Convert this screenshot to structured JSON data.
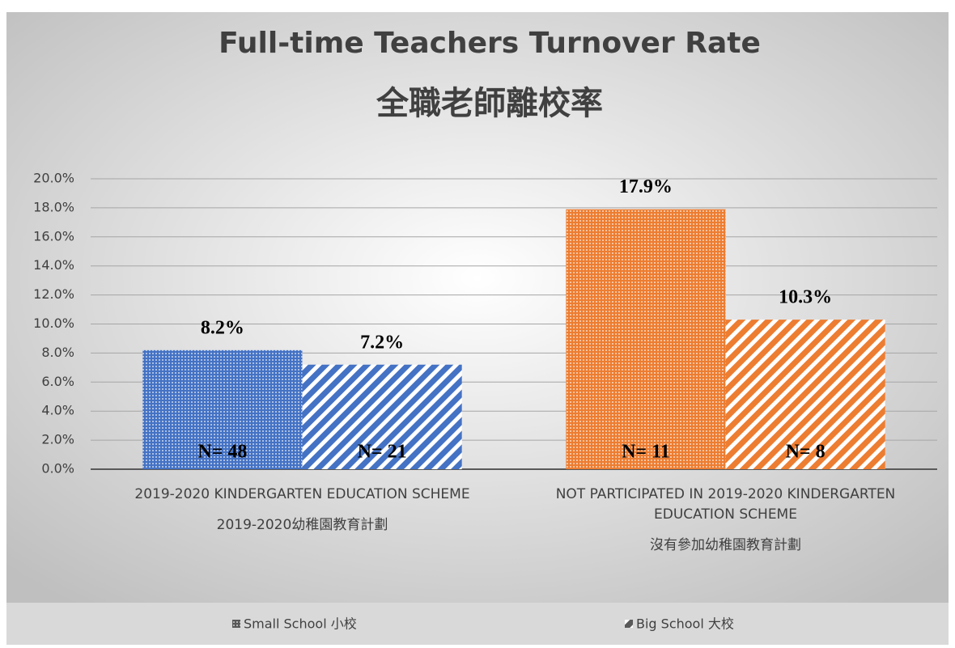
{
  "chart_data": {
    "type": "bar",
    "title": "Full-time Teachers Turnover Rate",
    "subtitle": "全職老師離校率",
    "categories": [
      [
        "2019-2020 KINDERGARTEN EDUCATION SCHEME",
        "2019-2020幼稚園教育計劃"
      ],
      [
        "NOT PARTICIPATED IN 2019-2020 KINDERGARTEN",
        "EDUCATION SCHEME",
        "沒有參加幼稚園教育計劃"
      ]
    ],
    "category_colors": [
      "#4472c4",
      "#ed7d31"
    ],
    "series": [
      {
        "name": "Small School 小校",
        "pattern": "dots",
        "values": [
          8.2,
          17.9
        ],
        "value_labels": [
          "8.2%",
          "17.9%"
        ],
        "annotations": [
          "N= 48",
          "N= 11"
        ]
      },
      {
        "name": "Big School 大校",
        "pattern": "stripes",
        "values": [
          7.2,
          10.3
        ],
        "value_labels": [
          "7.2%",
          "10.3%"
        ],
        "annotations": [
          "N= 21",
          "N= 8"
        ]
      }
    ],
    "ylim": [
      0,
      20
    ],
    "yticks": [
      {
        "value": 0,
        "label": "0.0%"
      },
      {
        "value": 2,
        "label": "2.0%"
      },
      {
        "value": 4,
        "label": "4.0%"
      },
      {
        "value": 6,
        "label": "6.0%"
      },
      {
        "value": 8,
        "label": "8.0%"
      },
      {
        "value": 10,
        "label": "10.0%"
      },
      {
        "value": 12,
        "label": "12.0%"
      },
      {
        "value": 14,
        "label": "14.0%"
      },
      {
        "value": 16,
        "label": "16.0%"
      },
      {
        "value": 18,
        "label": "18.0%"
      },
      {
        "value": 20,
        "label": "20.0%"
      }
    ],
    "grid": true,
    "legend": "bottom"
  }
}
